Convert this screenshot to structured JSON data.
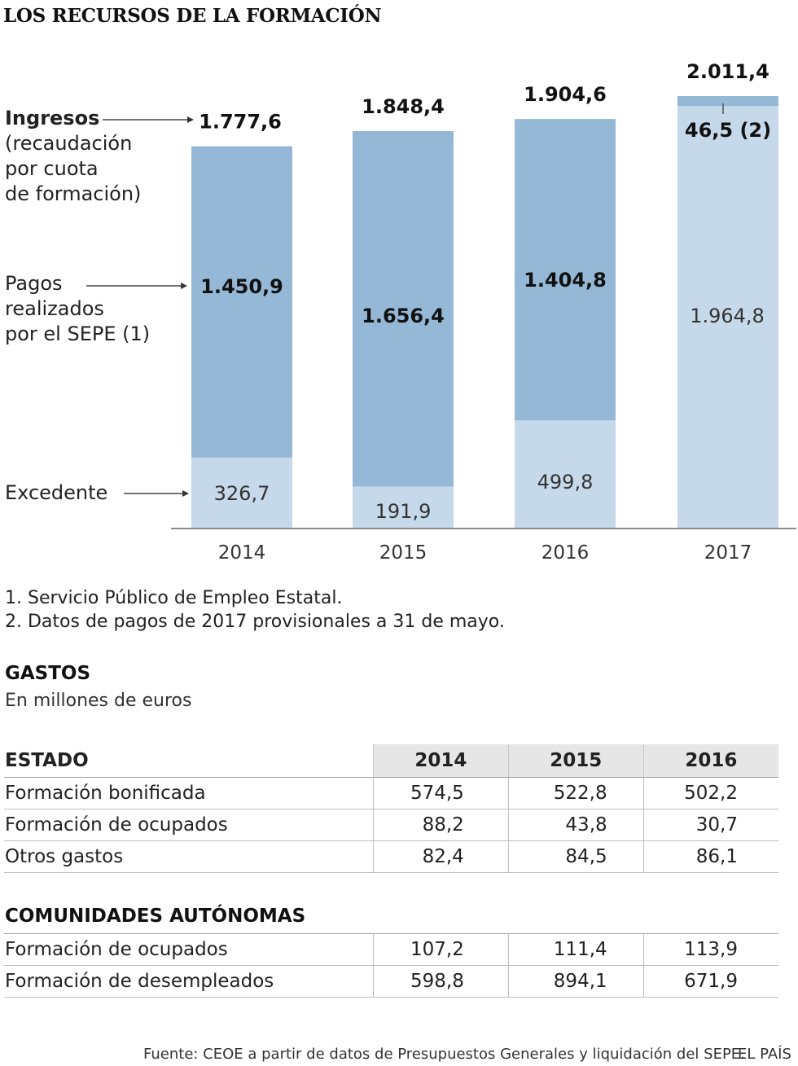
{
  "title": "LOS RECURSOS DE LA FORMACIÓN",
  "chart_data": {
    "type": "bar",
    "stacked": true,
    "categories": [
      "2014",
      "2015",
      "2016",
      "2017"
    ],
    "series": [
      {
        "name": "Excedente",
        "values": [
          326.7,
          191.9,
          499.8,
          1964.8
        ],
        "labels": [
          "326,7",
          "191,9",
          "499,8",
          "1.964,8"
        ],
        "color": "#c6d9ea"
      },
      {
        "name": "Pagos realizados por el SEPE (1)",
        "values": [
          1450.9,
          1656.4,
          1404.8,
          46.5
        ],
        "labels": [
          "1.450,9",
          "1.656,4",
          "1.404,8",
          "46,5 (2)"
        ],
        "color": "#94b8d6"
      }
    ],
    "totals": [
      1777.6,
      1848.4,
      1904.6,
      2011.4
    ],
    "total_labels": [
      "1.777,6",
      "1.848,4",
      "1.904,6",
      "2.011,4"
    ],
    "ylim": [
      0,
      2011.4
    ],
    "grid": false,
    "legend": {
      "ingresos_title": "Ingresos",
      "ingresos_lines": [
        "(recaudación",
        "por cuota",
        "de formación)"
      ],
      "pagos_lines": [
        "Pagos",
        "realizados",
        "por el SEPE (1)"
      ],
      "excedente": "Excedente"
    }
  },
  "notes": [
    "1. Servicio Público de Empleo Estatal.",
    "2. Datos de pagos de 2017 provisionales a 31 de mayo."
  ],
  "gastos": {
    "title": "GASTOS",
    "subtitle": "En millones de euros",
    "estado": {
      "header": "ESTADO",
      "years": [
        "2014",
        "2015",
        "2016"
      ],
      "rows": [
        {
          "label": "Formación bonificada",
          "values": [
            "574,5",
            "522,8",
            "502,2"
          ]
        },
        {
          "label": "Formación de ocupados",
          "values": [
            "88,2",
            "43,8",
            "30,7"
          ]
        },
        {
          "label": "Otros gastos",
          "values": [
            "82,4",
            "84,5",
            "86,1"
          ]
        }
      ]
    },
    "comunidades": {
      "header": "COMUNIDADES AUTÓNOMAS",
      "rows": [
        {
          "label": "Formación de ocupados",
          "values": [
            "107,2",
            "111,4",
            "113,9"
          ]
        },
        {
          "label": "Formación de desempleados",
          "values": [
            "598,8",
            "894,1",
            "671,9"
          ]
        }
      ]
    }
  },
  "source": "Fuente: CEOE a partir de datos de Presupuestos Generales y liquidación del SEPE.",
  "brand": "EL PAÍS"
}
